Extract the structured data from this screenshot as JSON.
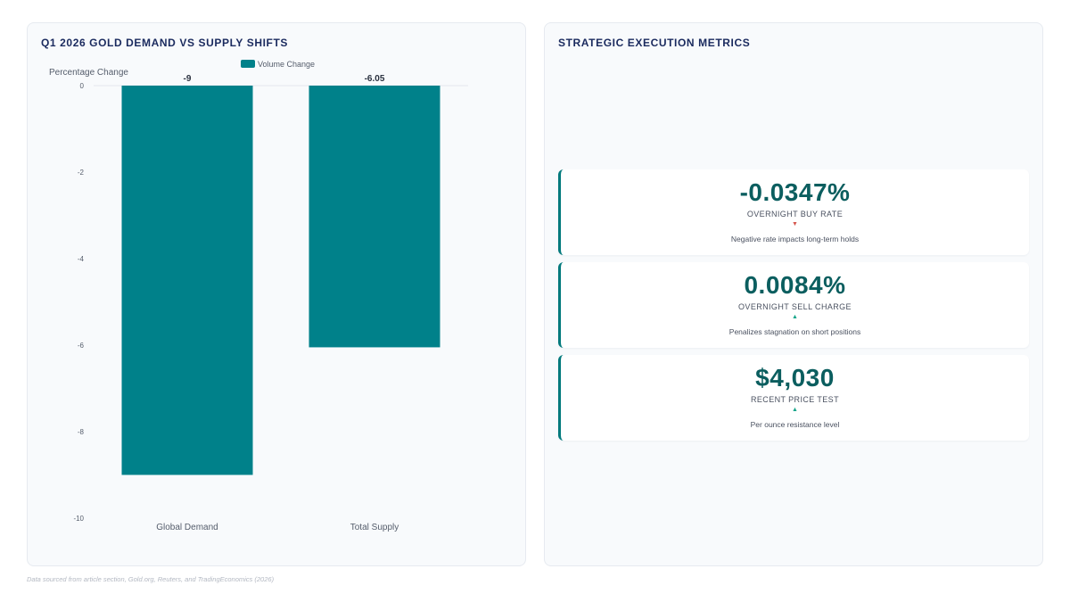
{
  "chart_panel": {
    "title": "Q1 2026 GOLD DEMAND VS SUPPLY SHIFTS"
  },
  "chart_data": {
    "type": "bar",
    "title": "Q1 2026 GOLD DEMAND VS SUPPLY SHIFTS",
    "categories": [
      "Global Demand",
      "Total Supply"
    ],
    "series": [
      {
        "name": "Volume Change",
        "values": [
          -9,
          -6.05
        ],
        "color": "#00818a"
      }
    ],
    "data_labels": [
      "-9",
      "-6.05"
    ],
    "ylabel": "Percentage Change",
    "xlabel": "",
    "ylim": [
      -10,
      0
    ],
    "yticks": [
      0,
      -2,
      -4,
      -6,
      -8,
      -10
    ],
    "legend": "top-center",
    "grid": false
  },
  "metrics_panel": {
    "title": "STRATEGIC EXECUTION METRICS",
    "cards": [
      {
        "value": "-0.0347%",
        "label": "OVERNIGHT BUY RATE",
        "arrow": "▼",
        "direction": "down",
        "note": "Negative rate impacts long-term holds"
      },
      {
        "value": "0.0084%",
        "label": "OVERNIGHT SELL CHARGE",
        "arrow": "▲",
        "direction": "up",
        "note": "Penalizes stagnation on short positions"
      },
      {
        "value": "$4,030",
        "label": "RECENT PRICE TEST",
        "arrow": "▲",
        "direction": "up",
        "note": "Per ounce resistance level"
      }
    ]
  },
  "footnote": "Data sourced from article section, Gold.org, Reuters, and TradingEconomics (2026)",
  "colors": {
    "accent": "#00797c",
    "value_text": "#0b5e5f",
    "title_text": "#1a2a5e",
    "down": "#d6564d",
    "up": "#18a58a"
  }
}
